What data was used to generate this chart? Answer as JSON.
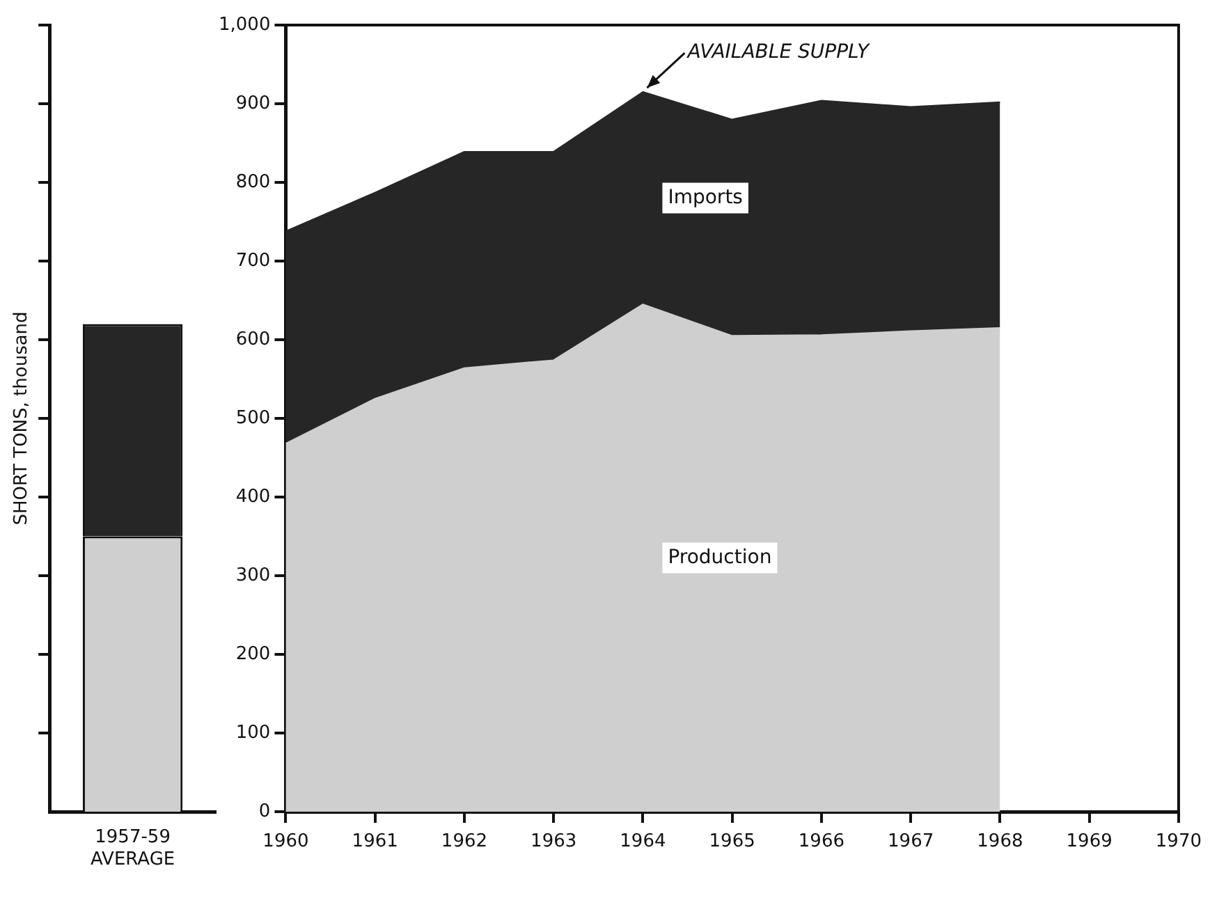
{
  "chart_data": [
    {
      "type": "bar",
      "stacked": true,
      "ylabel": "SHORT TONS, thousand",
      "categories": [
        "1957-59 AVERAGE"
      ],
      "ylim": [
        0,
        1000
      ],
      "yticks": [
        {
          "value": 100,
          "label": null
        },
        {
          "value": 200,
          "label": null
        },
        {
          "value": 300,
          "label": null
        },
        {
          "value": 400,
          "label": null
        },
        {
          "value": 500,
          "label": null
        },
        {
          "value": 600,
          "label": null
        },
        {
          "value": 700,
          "label": null
        },
        {
          "value": 800,
          "label": null
        },
        {
          "value": 900,
          "label": null
        },
        {
          "value": 1000,
          "label": null
        }
      ],
      "tick_labels": "x",
      "grid": false,
      "legend": false,
      "series": [
        {
          "color": "#cfcfcf",
          "values": [
            350
          ]
        },
        {
          "color": "#262626",
          "values": [
            270
          ]
        }
      ]
    },
    {
      "type": "area",
      "stacked": true,
      "x": [
        1960,
        1961,
        1962,
        1963,
        1964,
        1965,
        1966,
        1967,
        1968
      ],
      "xlim": [
        1960,
        1970
      ],
      "xticks": [
        1960,
        1961,
        1962,
        1963,
        1964,
        1965,
        1966,
        1967,
        1968,
        1969,
        1970
      ],
      "ylim": [
        0,
        1000
      ],
      "yticks": [
        0,
        100,
        200,
        300,
        400,
        500,
        600,
        700,
        800,
        900,
        {
          "value": 1000,
          "label": "1,000"
        }
      ],
      "grid": false,
      "legend": false,
      "annotations": [
        {
          "text": "AVAILABLE SUPPLY",
          "x": 1964,
          "y": 915
        }
      ],
      "series": [
        {
          "name": "Production",
          "color": "#cfcfcf",
          "values": [
            468,
            525,
            564,
            574,
            645,
            605,
            606,
            611,
            615
          ]
        },
        {
          "name": "Imports",
          "color": "#262626",
          "values": [
            270,
            262,
            275,
            265,
            270,
            275,
            298,
            285,
            287
          ]
        }
      ]
    }
  ]
}
